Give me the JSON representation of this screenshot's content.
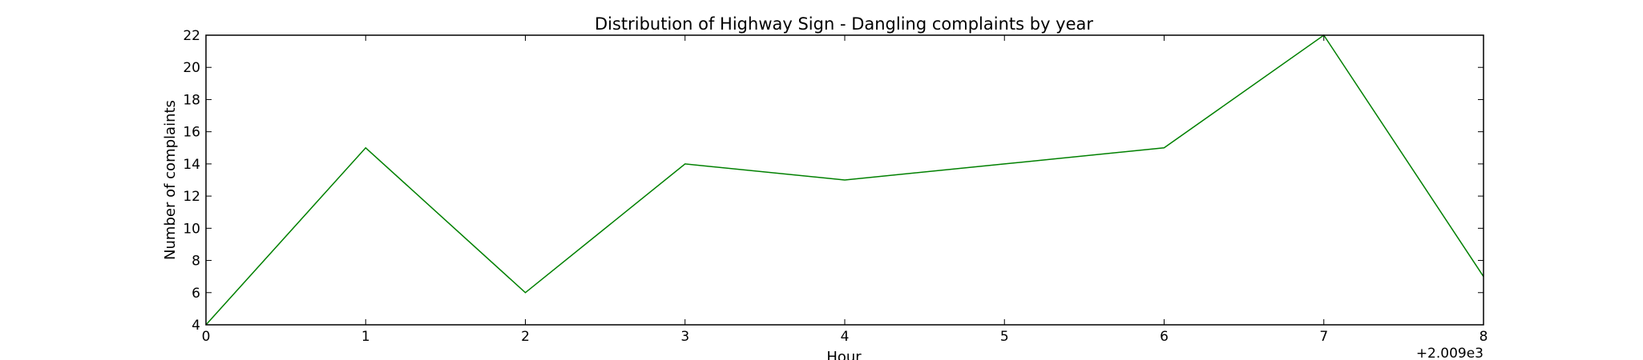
{
  "chart_data": {
    "type": "line",
    "title": "Distribution of  Highway Sign - Dangling complaints by year",
    "xlabel": "Hour",
    "ylabel": "Number of complaints",
    "x_offset_label": "+2.009e3",
    "xlim": [
      0,
      8
    ],
    "ylim": [
      4,
      22
    ],
    "x_ticks": [
      0,
      1,
      2,
      3,
      4,
      5,
      6,
      7,
      8
    ],
    "y_ticks": [
      4,
      6,
      8,
      10,
      12,
      14,
      16,
      18,
      20,
      22
    ],
    "grid": false,
    "series": [
      {
        "x": [
          0,
          1,
          2,
          3,
          4,
          5,
          6,
          7,
          8
        ],
        "values": [
          4,
          15,
          6,
          14,
          13,
          14,
          15,
          22,
          7
        ],
        "color": "#008000"
      }
    ]
  }
}
